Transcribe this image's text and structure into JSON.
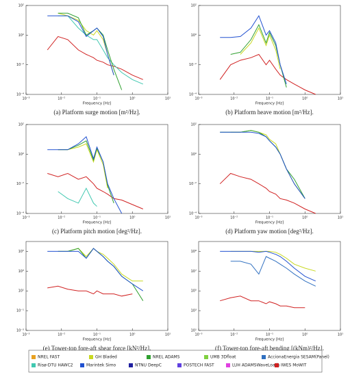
{
  "chart_data": [
    {
      "type": "line",
      "xlabel": "Frequency [Hz]",
      "caption": "(a)  Platform surge motion [m²/Hz].",
      "log_x": true,
      "log_y": true,
      "grid": false,
      "x": [
        0.004,
        0.008,
        0.015,
        0.03,
        0.05,
        0.08,
        0.1,
        0.15,
        0.2,
        0.3,
        0.5,
        1,
        2
      ],
      "xlim": [
        0.001,
        10
      ],
      "xticks": [
        {
          "value": 0.001,
          "label": "10⁻³"
        },
        {
          "value": 0.01,
          "label": "10⁻²"
        },
        {
          "value": 0.1,
          "label": "10⁻¹"
        },
        {
          "value": 1,
          "label": "10⁰"
        },
        {
          "value": 10,
          "label": "10¹"
        }
      ],
      "ylim": [
        0.0001,
        100
      ],
      "yticks": [
        {
          "value": 0.0001,
          "label": "10⁻⁴"
        },
        {
          "value": 0.01,
          "label": "10⁻²"
        },
        {
          "value": 1,
          "label": "10⁰"
        },
        {
          "value": 100,
          "label": "10²"
        }
      ],
      "series": [
        {
          "name": "IWES MoWIT",
          "color": "#d02020",
          "values": [
            0.1,
            0.8,
            0.5,
            0.1,
            0.05,
            0.03,
            0.02,
            0.015,
            0.01,
            0.008,
            0.005,
            0.002,
            0.001
          ]
        },
        {
          "name": "Risø-DTU HAWC2",
          "color": "#40c8b0",
          "values": [
            null,
            20,
            20,
            3,
            1,
            0.5,
            0.5,
            0.1,
            0.03,
            0.01,
            0.003,
            0.001,
            0.0005
          ]
        },
        {
          "name": "GH Bladed",
          "color": "#c8d820",
          "values": [
            null,
            30,
            20,
            10,
            2,
            1,
            2,
            0.5,
            0.05,
            0.002,
            null,
            null,
            null
          ]
        },
        {
          "name": "NREL ADAMS",
          "color": "#30a030",
          "values": [
            null,
            30,
            30,
            15,
            1,
            2,
            3,
            1,
            0.1,
            0.005,
            0.0002,
            null,
            null
          ]
        },
        {
          "name": "Marintek Simo",
          "color": "#2050d0",
          "values": [
            20,
            20,
            20,
            8,
            0.8,
            2,
            3,
            0.8,
            0.05,
            0.002,
            null,
            null,
            null
          ]
        }
      ]
    },
    {
      "type": "line",
      "xlabel": "Frequency [Hz]",
      "caption": "(b)  Platform heave motion [m²/Hz].",
      "log_x": true,
      "log_y": true,
      "grid": false,
      "x": [
        0.004,
        0.008,
        0.015,
        0.03,
        0.05,
        0.08,
        0.1,
        0.15,
        0.2,
        0.3,
        0.5,
        1,
        2
      ],
      "xlim": [
        0.001,
        10
      ],
      "xticks": [
        {
          "value": 0.001,
          "label": "10⁻³"
        },
        {
          "value": 0.01,
          "label": "10⁻²"
        },
        {
          "value": 0.1,
          "label": "10⁻¹"
        },
        {
          "value": 1,
          "label": "10⁰"
        },
        {
          "value": 10,
          "label": "10¹"
        }
      ],
      "ylim": [
        0.0001,
        100
      ],
      "yticks": [
        {
          "value": 0.0001,
          "label": "10⁻⁴"
        },
        {
          "value": 0.01,
          "label": "10⁻²"
        },
        {
          "value": 1,
          "label": "10⁰"
        },
        {
          "value": 100,
          "label": "10²"
        }
      ],
      "series": [
        {
          "name": "IWES MoWIT",
          "color": "#d02020",
          "values": [
            0.001,
            0.01,
            0.02,
            0.03,
            0.05,
            0.01,
            0.02,
            0.005,
            0.002,
            0.001,
            0.0005,
            0.0002,
            0.0001
          ]
        },
        {
          "name": "GH Bladed",
          "color": "#c8d820",
          "values": [
            null,
            null,
            0.05,
            0.3,
            3,
            0.2,
            1,
            0.1,
            0.005,
            null,
            null,
            null,
            null
          ]
        },
        {
          "name": "NREL ADAMS",
          "color": "#30a030",
          "values": [
            null,
            0.05,
            0.07,
            0.5,
            5,
            0.3,
            1.5,
            0.2,
            0.01,
            0.0003,
            null,
            null,
            null
          ]
        },
        {
          "name": "Marintek Simo",
          "color": "#2050d0",
          "values": [
            0.7,
            0.7,
            0.8,
            3,
            20,
            1,
            2,
            0.3,
            0.01,
            0.0005,
            null,
            null,
            null
          ]
        }
      ]
    },
    {
      "type": "line",
      "xlabel": "Frequency [Hz]",
      "caption": "(c)  Platform pitch motion [deg²/Hz].",
      "log_x": true,
      "log_y": true,
      "grid": false,
      "x": [
        0.004,
        0.008,
        0.015,
        0.03,
        0.05,
        0.08,
        0.1,
        0.15,
        0.2,
        0.3,
        0.5,
        1,
        2
      ],
      "xlim": [
        0.001,
        10
      ],
      "xticks": [
        {
          "value": 0.001,
          "label": "10⁻³"
        },
        {
          "value": 0.01,
          "label": "10⁻²"
        },
        {
          "value": 0.1,
          "label": "10⁻¹"
        },
        {
          "value": 1,
          "label": "10⁰"
        },
        {
          "value": 10,
          "label": "10¹"
        }
      ],
      "ylim": [
        0.0001,
        100
      ],
      "yticks": [
        {
          "value": 0.0001,
          "label": "10⁻⁴"
        },
        {
          "value": 0.01,
          "label": "10⁻²"
        },
        {
          "value": 1,
          "label": "10⁰"
        },
        {
          "value": 100,
          "label": "10²"
        }
      ],
      "series": [
        {
          "name": "IWES MoWIT",
          "color": "#d02020",
          "values": [
            0.05,
            0.03,
            0.05,
            0.02,
            0.03,
            0.01,
            0.005,
            0.003,
            0.002,
            0.001,
            0.0008,
            0.0004,
            0.0002
          ]
        },
        {
          "name": "Risø-DTU HAWC2",
          "color": "#40c8b0",
          "values": [
            null,
            0.003,
            0.001,
            0.0005,
            0.005,
            0.0005,
            0.0003,
            null,
            null,
            null,
            null,
            null,
            null
          ]
        },
        {
          "name": "GH Bladed",
          "color": "#c8d820",
          "values": [
            null,
            2,
            2,
            3,
            5,
            0.3,
            2,
            0.2,
            0.005,
            null,
            null,
            null,
            null
          ]
        },
        {
          "name": "NREL ADAMS",
          "color": "#30a030",
          "values": [
            null,
            2,
            2,
            4,
            8,
            0.4,
            2.5,
            0.3,
            0.008,
            0.0005,
            null,
            null,
            null
          ]
        },
        {
          "name": "Marintek Simo",
          "color": "#2050d0",
          "values": [
            2,
            2,
            2,
            5,
            15,
            0.5,
            3,
            0.3,
            0.01,
            0.001,
            0.0001,
            null,
            null
          ]
        }
      ]
    },
    {
      "type": "line",
      "xlabel": "Frequency [Hz]",
      "caption": "(d)  Platform yaw motion [deg²/Hz].",
      "log_x": true,
      "log_y": true,
      "grid": false,
      "x": [
        0.004,
        0.008,
        0.015,
        0.03,
        0.05,
        0.08,
        0.1,
        0.15,
        0.2,
        0.3,
        0.5,
        1,
        2
      ],
      "xlim": [
        0.001,
        10
      ],
      "xticks": [
        {
          "value": 0.001,
          "label": "10⁻³"
        },
        {
          "value": 0.01,
          "label": "10⁻²"
        },
        {
          "value": 0.1,
          "label": "10⁻¹"
        },
        {
          "value": 1,
          "label": "10⁰"
        },
        {
          "value": 10,
          "label": "10¹"
        }
      ],
      "ylim": [
        0.0001,
        100
      ],
      "yticks": [
        {
          "value": 0.0001,
          "label": "10⁻⁴"
        },
        {
          "value": 0.01,
          "label": "10⁻²"
        },
        {
          "value": 1,
          "label": "10⁰"
        },
        {
          "value": 100,
          "label": "10²"
        }
      ],
      "series": [
        {
          "name": "IWES MoWIT",
          "color": "#d02020",
          "values": [
            0.01,
            0.05,
            0.03,
            0.02,
            0.01,
            0.005,
            0.003,
            0.002,
            0.001,
            0.0008,
            0.0005,
            0.0002,
            0.0001
          ]
        },
        {
          "name": "GH Bladed",
          "color": "#c8d820",
          "values": [
            null,
            30,
            30,
            40,
            30,
            20,
            10,
            5,
            1,
            0.1,
            0.01,
            0.001,
            null
          ]
        },
        {
          "name": "NREL ADAMS",
          "color": "#30a030",
          "values": [
            30,
            30,
            30,
            40,
            30,
            15,
            8,
            3,
            1,
            0.1,
            0.02,
            0.001,
            null
          ]
        },
        {
          "name": "Marintek Simo",
          "color": "#2050d0",
          "values": [
            30,
            30,
            30,
            30,
            25,
            15,
            8,
            3,
            1,
            0.1,
            0.01,
            0.001,
            null
          ]
        }
      ]
    },
    {
      "type": "line",
      "xlabel": "Frequency [Hz]",
      "caption": "(e)  Tower-top fore-aft shear force [kN²/Hz].",
      "log_x": true,
      "log_y": true,
      "grid": false,
      "x": [
        0.004,
        0.008,
        0.015,
        0.03,
        0.05,
        0.08,
        0.1,
        0.15,
        0.2,
        0.3,
        0.5,
        1,
        2
      ],
      "xlim": [
        0.001,
        10
      ],
      "xticks": [
        {
          "value": 0.001,
          "label": "10⁻³"
        },
        {
          "value": 0.01,
          "label": "10⁻²"
        },
        {
          "value": 0.1,
          "label": "10⁻¹"
        },
        {
          "value": 1,
          "label": "10⁰"
        },
        {
          "value": 10,
          "label": "10¹"
        }
      ],
      "ylim": [
        0.001,
        1000000
      ],
      "yticks": [
        {
          "value": 0.001,
          "label": "10⁻³"
        },
        {
          "value": 0.1,
          "label": "10⁻¹"
        },
        {
          "value": 10,
          "label": "10¹"
        },
        {
          "value": 1000,
          "label": "10³"
        },
        {
          "value": 100000,
          "label": "10⁵"
        }
      ],
      "series": [
        {
          "name": "IWES MoWIT",
          "color": "#d02020",
          "values": [
            20,
            30,
            15,
            10,
            10,
            5,
            10,
            5,
            5,
            5,
            3,
            5,
            null
          ]
        },
        {
          "name": "GH Bladed",
          "color": "#c8d820",
          "values": [
            null,
            100000,
            100000,
            200000,
            30000,
            200000,
            100000,
            50000,
            20000,
            5000,
            500,
            100,
            100
          ]
        },
        {
          "name": "NREL ADAMS",
          "color": "#30a030",
          "values": [
            null,
            100000,
            100000,
            200000,
            20000,
            200000,
            100000,
            30000,
            10000,
            3000,
            300,
            50,
            1
          ]
        },
        {
          "name": "Marintek Simo",
          "color": "#2050d0",
          "values": [
            100000,
            100000,
            100000,
            100000,
            20000,
            200000,
            100000,
            30000,
            10000,
            3000,
            300,
            50,
            10
          ]
        }
      ]
    },
    {
      "type": "line",
      "xlabel": "Frequency [Hz]",
      "caption": "(f)  Tower-top fore-aft bending [(kNm)²/Hz].",
      "log_x": true,
      "log_y": true,
      "grid": false,
      "x": [
        0.004,
        0.008,
        0.015,
        0.03,
        0.05,
        0.08,
        0.1,
        0.15,
        0.2,
        0.3,
        0.5,
        1,
        2
      ],
      "xlim": [
        0.001,
        10
      ],
      "xticks": [
        {
          "value": 0.001,
          "label": "10⁻³"
        },
        {
          "value": 0.01,
          "label": "10⁻²"
        },
        {
          "value": 0.1,
          "label": "10⁻¹"
        },
        {
          "value": 1,
          "label": "10⁰"
        },
        {
          "value": 10,
          "label": "10¹"
        }
      ],
      "ylim": [
        10,
        10000000000
      ],
      "yticks": [
        {
          "value": 10,
          "label": "10¹"
        },
        {
          "value": 1000,
          "label": "10³"
        },
        {
          "value": 100000,
          "label": "10⁵"
        },
        {
          "value": 10000000,
          "label": "10⁷"
        },
        {
          "value": 1000000000,
          "label": "10⁹"
        }
      ],
      "series": [
        {
          "name": "IWES MoWIT",
          "color": "#d02020",
          "values": [
            10000,
            20000,
            30000,
            10000,
            10000,
            5000,
            8000,
            5000,
            3000,
            3000,
            2000,
            2000,
            null
          ]
        },
        {
          "name": "AccionaEnergia SESAM(Panel)",
          "color": "#3070c0",
          "values": [
            null,
            100000000,
            100000000,
            50000000,
            5000000,
            300000000,
            200000000,
            100000000,
            50000000,
            20000000,
            5000000,
            1000000,
            300000
          ]
        },
        {
          "name": "GH Bladed",
          "color": "#c8d820",
          "values": [
            null,
            1000000000,
            1000000000,
            1000000000,
            1000000000,
            1000000000,
            1000000000,
            800000000,
            500000000,
            200000000,
            50000000,
            20000000,
            10000000
          ]
        },
        {
          "name": "Marintek Simo",
          "color": "#2050d0",
          "values": [
            1000000000,
            1000000000,
            1000000000,
            1000000000,
            800000000,
            1000000000,
            800000000,
            500000000,
            300000000,
            100000000,
            20000000,
            3000000,
            1000000
          ]
        }
      ]
    }
  ],
  "legend": [
    {
      "name": "NREL FAST",
      "color": "#e8a020"
    },
    {
      "name": "GH Bladed",
      "color": "#c8d820"
    },
    {
      "name": "NREL ADAMS",
      "color": "#30a030"
    },
    {
      "name": "UMB 3Dfloat",
      "color": "#80d040"
    },
    {
      "name": "AccionaEnergia SESAM(Panel)",
      "color": "#3070c0"
    },
    {
      "name": "Risø-DTU HAWC2",
      "color": "#40c8b0"
    },
    {
      "name": "Marintek Simo",
      "color": "#2050d0"
    },
    {
      "name": "NTNU DeepC",
      "color": "#2020a0"
    },
    {
      "name": "POSTECH FAST",
      "color": "#6040e0"
    },
    {
      "name": "LUH ADAMSWaveLoads",
      "color": "#e040e0"
    },
    {
      "name": "IWES MoWIT",
      "color": "#d02020"
    }
  ]
}
